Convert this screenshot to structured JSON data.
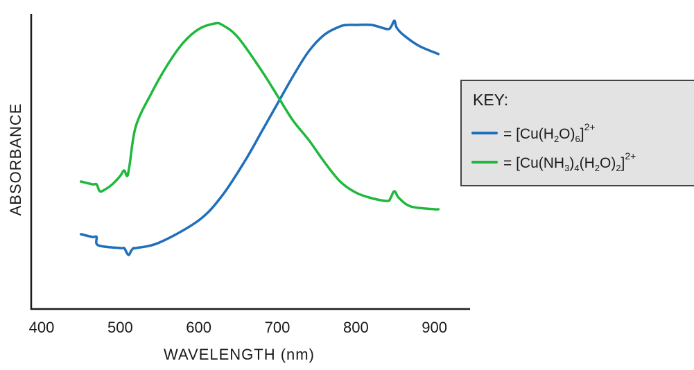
{
  "chart_data": {
    "type": "line",
    "xlabel": "WAVELENGTH (nm)",
    "ylabel": "ABSORBANCE",
    "x_ticks": [
      "400",
      "500",
      "600",
      "700",
      "800",
      "900"
    ],
    "xlim": [
      400,
      925
    ],
    "ylim": [
      0,
      1
    ],
    "grid": false,
    "legend_position": "right",
    "legend_title": "KEY:",
    "series": [
      {
        "key": "hexaaqua",
        "name": "= [Cu(H2O)6]2+",
        "color": "#1f6fba",
        "x": [
          450,
          465,
          470,
          472,
          500,
          505,
          508,
          511,
          514,
          517,
          520,
          550,
          600,
          630,
          660,
          680,
          700,
          720,
          740,
          760,
          780,
          790,
          800,
          820,
          840,
          845,
          849,
          852,
          860,
          880,
          905
        ],
        "y": [
          0.23,
          0.22,
          0.22,
          0.19,
          0.18,
          0.18,
          0.165,
          0.155,
          0.17,
          0.18,
          0.18,
          0.2,
          0.28,
          0.37,
          0.5,
          0.6,
          0.7,
          0.8,
          0.89,
          0.95,
          0.98,
          0.985,
          0.985,
          0.985,
          0.97,
          0.98,
          1.0,
          0.975,
          0.95,
          0.91,
          0.88
        ]
      },
      {
        "key": "tetraammine",
        "name": "= [Cu(NH3)4(H2O)2]2+",
        "color": "#1fb83c",
        "x": [
          450,
          465,
          470,
          474,
          480,
          490,
          500,
          505,
          509,
          512,
          520,
          540,
          560,
          580,
          600,
          620,
          630,
          650,
          680,
          700,
          720,
          740,
          760,
          780,
          800,
          820,
          840,
          844,
          849,
          855,
          870,
          900,
          905
        ],
        "y": [
          0.42,
          0.41,
          0.41,
          0.385,
          0.39,
          0.41,
          0.44,
          0.46,
          0.44,
          0.48,
          0.62,
          0.74,
          0.84,
          0.92,
          0.97,
          0.99,
          0.985,
          0.94,
          0.82,
          0.73,
          0.64,
          0.57,
          0.49,
          0.42,
          0.38,
          0.36,
          0.35,
          0.36,
          0.385,
          0.36,
          0.33,
          0.32,
          0.32
        ]
      }
    ]
  }
}
